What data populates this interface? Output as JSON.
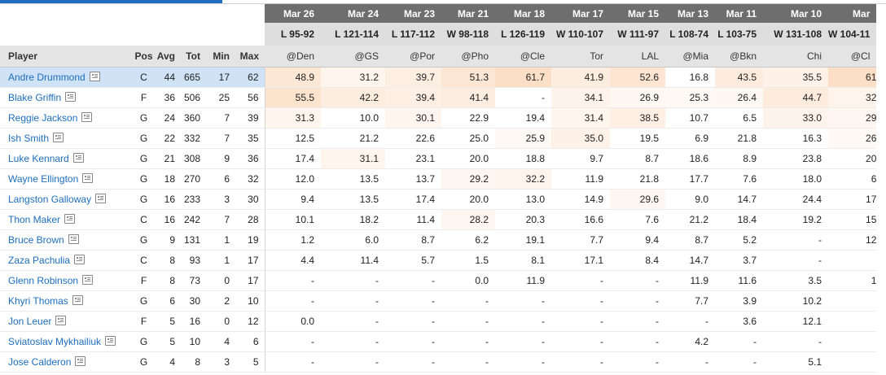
{
  "colors": {
    "accent": "#1e6fc1",
    "link": "#1d6ebd",
    "date_header_bg": "#6e6e6e",
    "result_header_bg": "#dedede",
    "selected_row_bg": "#cfe2f6",
    "heat_base": "#f6a05b"
  },
  "icon": "player-card-icon",
  "columns": {
    "player": "Player",
    "pos": "Pos",
    "avg": "Avg",
    "tot": "Tot",
    "min": "Min",
    "max": "Max"
  },
  "games": [
    {
      "date": "Mar 26",
      "result": "L 95-92",
      "opponent": "@Den"
    },
    {
      "date": "Mar 24",
      "result": "L 121-114",
      "opponent": "@GS"
    },
    {
      "date": "Mar 23",
      "result": "L 117-112",
      "opponent": "@Por"
    },
    {
      "date": "Mar 21",
      "result": "W 98-118",
      "opponent": "@Pho"
    },
    {
      "date": "Mar 18",
      "result": "L 126-119",
      "opponent": "@Cle"
    },
    {
      "date": "Mar 17",
      "result": "W 110-107",
      "opponent": "Tor"
    },
    {
      "date": "Mar 15",
      "result": "W 111-97",
      "opponent": "LAL"
    },
    {
      "date": "Mar 13",
      "result": "L 108-74",
      "opponent": "@Mia"
    },
    {
      "date": "Mar 11",
      "result": "L 103-75",
      "opponent": "@Bkn"
    },
    {
      "date": "Mar 10",
      "result": "W 131-108",
      "opponent": "Chi"
    },
    {
      "date": "Mar",
      "result": "W 104-11",
      "opponent": "@Cl"
    }
  ],
  "players": [
    {
      "name": "Andre Drummond",
      "pos": "C",
      "avg": "44",
      "tot": "665",
      "min": "17",
      "max": "62",
      "values": [
        "48.9",
        "31.2",
        "39.7",
        "51.3",
        "61.7",
        "41.9",
        "52.6",
        "16.8",
        "43.5",
        "35.5",
        "61"
      ]
    },
    {
      "name": "Blake Griffin",
      "pos": "F",
      "avg": "36",
      "tot": "506",
      "min": "25",
      "max": "56",
      "values": [
        "55.5",
        "42.2",
        "39.4",
        "41.4",
        "-",
        "34.1",
        "26.9",
        "25.3",
        "26.4",
        "44.7",
        "32"
      ]
    },
    {
      "name": "Reggie Jackson",
      "pos": "G",
      "avg": "24",
      "tot": "360",
      "min": "7",
      "max": "39",
      "values": [
        "31.3",
        "10.0",
        "30.1",
        "22.9",
        "19.4",
        "31.4",
        "38.5",
        "10.7",
        "6.5",
        "33.0",
        "29"
      ]
    },
    {
      "name": "Ish Smith",
      "pos": "G",
      "avg": "22",
      "tot": "332",
      "min": "7",
      "max": "35",
      "values": [
        "12.5",
        "21.2",
        "22.6",
        "25.0",
        "25.9",
        "35.0",
        "19.5",
        "6.9",
        "21.8",
        "16.3",
        "26"
      ]
    },
    {
      "name": "Luke Kennard",
      "pos": "G",
      "avg": "21",
      "tot": "308",
      "min": "9",
      "max": "36",
      "values": [
        "17.4",
        "31.1",
        "23.1",
        "20.0",
        "18.8",
        "9.7",
        "8.7",
        "18.6",
        "8.9",
        "23.8",
        "20"
      ]
    },
    {
      "name": "Wayne Ellington",
      "pos": "G",
      "avg": "18",
      "tot": "270",
      "min": "6",
      "max": "32",
      "values": [
        "12.0",
        "13.5",
        "13.7",
        "29.2",
        "32.2",
        "11.9",
        "21.8",
        "17.7",
        "7.6",
        "18.0",
        "6"
      ]
    },
    {
      "name": "Langston Galloway",
      "pos": "G",
      "avg": "16",
      "tot": "233",
      "min": "3",
      "max": "30",
      "values": [
        "9.4",
        "13.5",
        "17.4",
        "20.0",
        "13.0",
        "14.9",
        "29.6",
        "9.0",
        "14.7",
        "24.4",
        "17"
      ]
    },
    {
      "name": "Thon Maker",
      "pos": "C",
      "avg": "16",
      "tot": "242",
      "min": "7",
      "max": "28",
      "values": [
        "10.1",
        "18.2",
        "11.4",
        "28.2",
        "20.3",
        "16.6",
        "7.6",
        "21.2",
        "18.4",
        "19.2",
        "15"
      ]
    },
    {
      "name": "Bruce Brown",
      "pos": "G",
      "avg": "9",
      "tot": "131",
      "min": "1",
      "max": "19",
      "values": [
        "1.2",
        "6.0",
        "8.7",
        "6.2",
        "19.1",
        "7.7",
        "9.4",
        "8.7",
        "5.2",
        "-",
        "12"
      ]
    },
    {
      "name": "Zaza Pachulia",
      "pos": "C",
      "avg": "8",
      "tot": "93",
      "min": "1",
      "max": "17",
      "values": [
        "4.4",
        "11.4",
        "5.7",
        "1.5",
        "8.1",
        "17.1",
        "8.4",
        "14.7",
        "3.7",
        "-",
        ""
      ]
    },
    {
      "name": "Glenn Robinson",
      "pos": "F",
      "avg": "8",
      "tot": "73",
      "min": "0",
      "max": "17",
      "values": [
        "-",
        "-",
        "-",
        "0.0",
        "11.9",
        "-",
        "-",
        "11.9",
        "11.6",
        "3.5",
        "1"
      ]
    },
    {
      "name": "Khyri Thomas",
      "pos": "G",
      "avg": "6",
      "tot": "30",
      "min": "2",
      "max": "10",
      "values": [
        "-",
        "-",
        "-",
        "-",
        "-",
        "-",
        "-",
        "7.7",
        "3.9",
        "10.2",
        ""
      ]
    },
    {
      "name": "Jon Leuer",
      "pos": "F",
      "avg": "5",
      "tot": "16",
      "min": "0",
      "max": "12",
      "values": [
        "0.0",
        "-",
        "-",
        "-",
        "-",
        "-",
        "-",
        "-",
        "3.6",
        "12.1",
        ""
      ]
    },
    {
      "name": "Sviatoslav Mykhailiuk",
      "pos": "G",
      "avg": "5",
      "tot": "10",
      "min": "4",
      "max": "6",
      "values": [
        "-",
        "-",
        "-",
        "-",
        "-",
        "-",
        "-",
        "4.2",
        "-",
        "-",
        ""
      ]
    },
    {
      "name": "Jose Calderon",
      "pos": "G",
      "avg": "4",
      "tot": "8",
      "min": "3",
      "max": "5",
      "values": [
        "-",
        "-",
        "-",
        "-",
        "-",
        "-",
        "-",
        "-",
        "-",
        "5.1",
        ""
      ]
    }
  ]
}
